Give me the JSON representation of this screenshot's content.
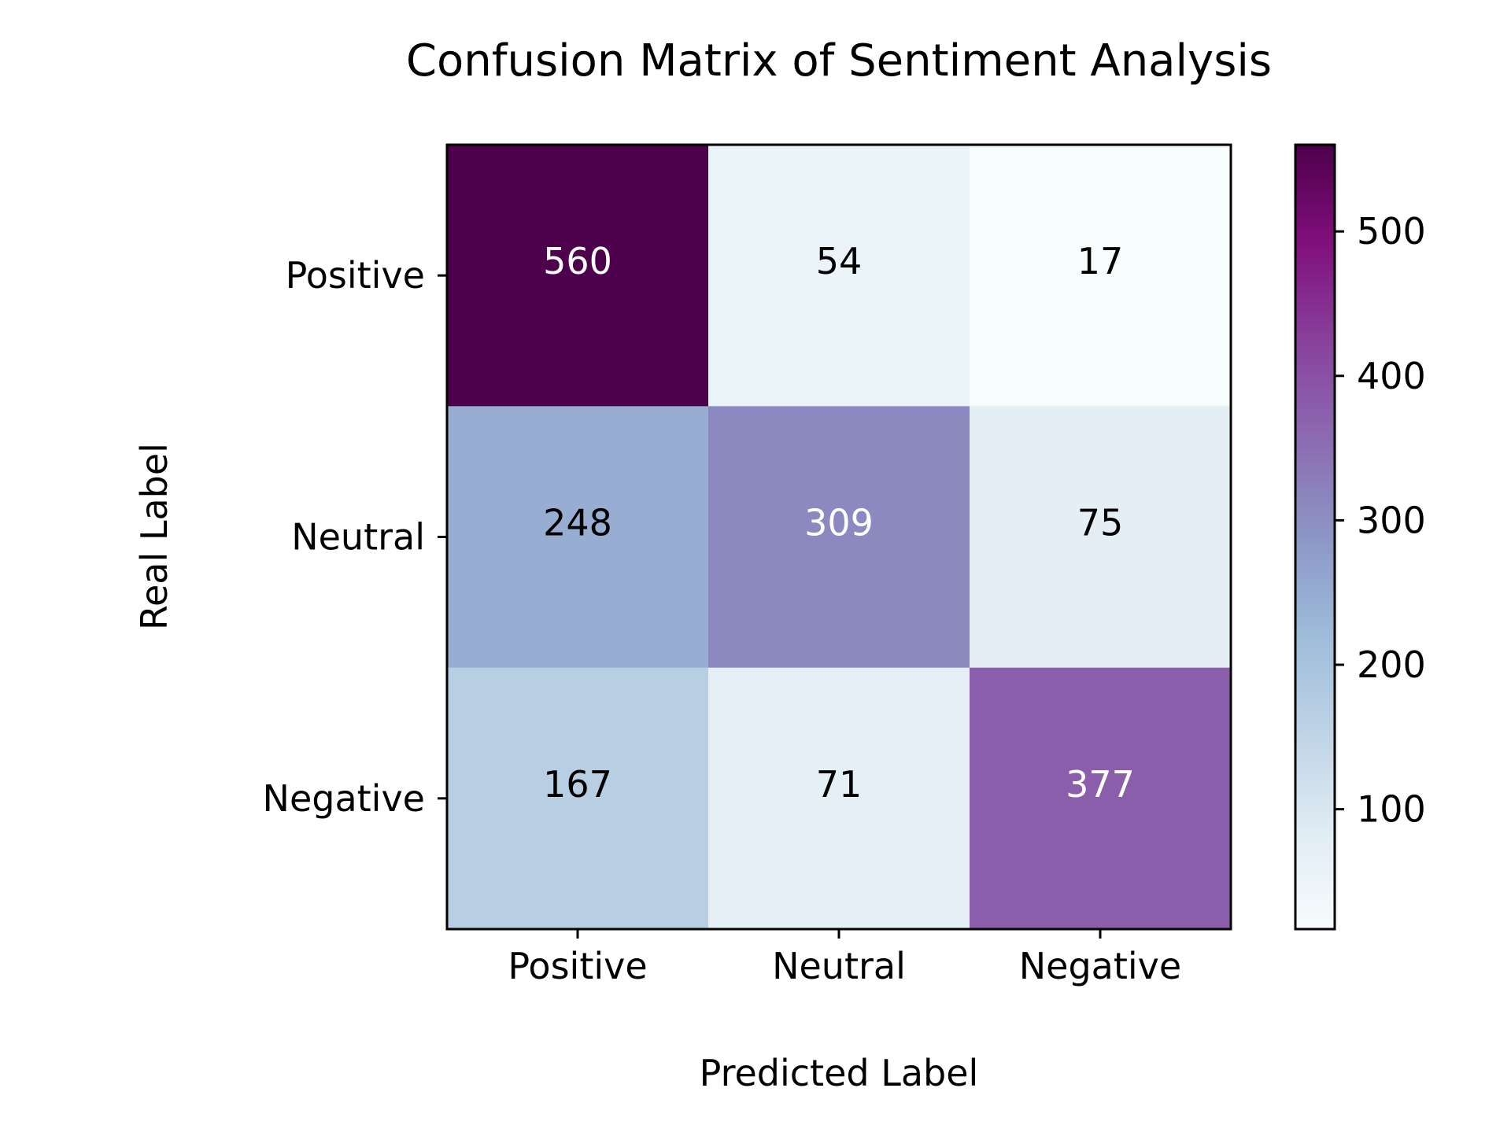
{
  "chart_data": {
    "type": "heatmap",
    "title": "Confusion Matrix of Sentiment Analysis",
    "xlabel": "Predicted Label",
    "ylabel": "Real Label",
    "x_categories": [
      "Positive",
      "Neutral",
      "Negative"
    ],
    "y_categories": [
      "Positive",
      "Neutral",
      "Negative"
    ],
    "values": [
      [
        560,
        54,
        17
      ],
      [
        248,
        309,
        75
      ],
      [
        167,
        71,
        377
      ]
    ],
    "colormap": "BuPu",
    "color_range": [
      17,
      560
    ],
    "colorbar_ticks": [
      100,
      200,
      300,
      400,
      500
    ],
    "grid": false
  }
}
